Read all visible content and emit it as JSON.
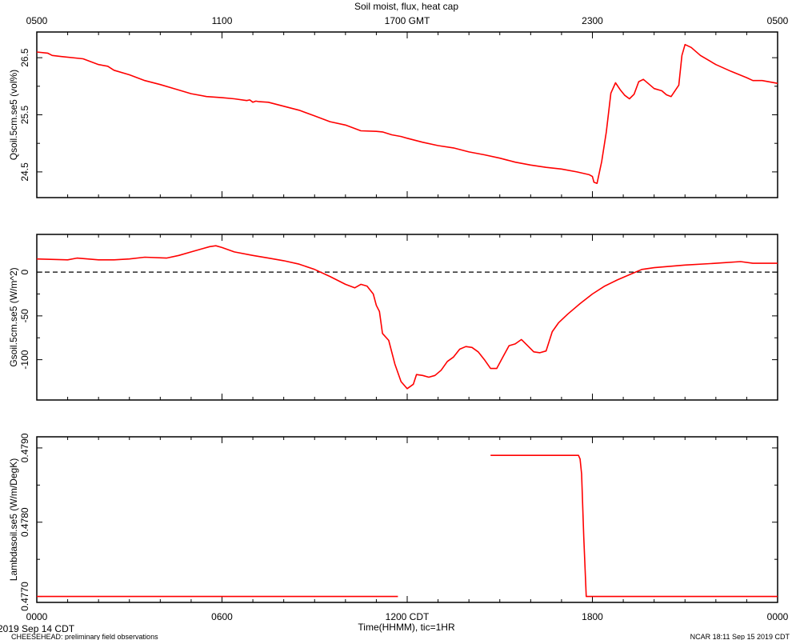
{
  "chart_data": {
    "title": "Soil moist, flux, heat cap",
    "top_axis": {
      "ticks": [
        "0500",
        "1100",
        "1700 GMT",
        "2300",
        "0500"
      ],
      "tick_hours": [
        0,
        6,
        12,
        18,
        24
      ]
    },
    "bottom_axis": {
      "ticks": [
        "0000",
        "0600",
        "1200 CDT",
        "1800",
        "0000"
      ],
      "tick_hours": [
        0,
        6,
        12,
        18,
        24
      ],
      "xlabel": "Time(HHMM), tic=1HR",
      "xlim_hours": [
        0,
        24
      ]
    },
    "footer": {
      "date": "2019 Sep 14 CDT",
      "project": "CHEESEHEAD: preliminary field observations",
      "stamp": "NCAR 18:11 Sep 15 2019 CDT"
    },
    "panels": [
      {
        "type": "line",
        "ylabel": "Qsoil.5cm.se5 (vol%)",
        "ylim": [
          24.05,
          26.95
        ],
        "yticks": [
          24.5,
          25.5,
          26.5
        ],
        "ytick_labels": [
          "24.5",
          "25.5",
          "26.5"
        ],
        "color": "#ff0000",
        "series": [
          {
            "x": [
              0,
              0.35,
              0.5,
              0.8,
              1.5,
              2.0,
              2.3,
              2.5,
              3.0,
              3.5,
              4.0,
              4.5,
              5.0,
              5.5,
              6.0,
              6.4,
              6.8,
              6.9,
              7.0,
              7.1,
              7.2,
              7.5,
              8.0,
              8.5,
              9.0,
              9.5,
              10.0,
              10.5,
              11.0,
              11.2,
              11.5,
              11.8,
              12.0,
              12.5,
              13.0,
              13.5,
              14.0,
              14.5,
              15.0,
              15.5,
              16.0,
              16.5,
              17.0,
              17.5,
              17.9,
              18.0,
              18.05,
              18.15,
              18.3,
              18.45,
              18.6,
              18.75,
              18.9,
              19.05,
              19.2,
              19.35,
              19.5,
              19.65,
              20.0,
              20.25,
              20.4,
              20.55,
              20.8,
              20.9,
              21.0,
              21.2,
              21.5,
              22.0,
              22.5,
              23.0,
              23.2,
              23.5,
              24.0
            ],
            "y": [
              26.6,
              26.58,
              26.54,
              26.52,
              26.48,
              26.38,
              26.35,
              26.28,
              26.2,
              26.1,
              26.03,
              25.95,
              25.87,
              25.82,
              25.8,
              25.78,
              25.75,
              25.76,
              25.72,
              25.74,
              25.73,
              25.72,
              25.65,
              25.58,
              25.48,
              25.38,
              25.32,
              25.22,
              25.21,
              25.2,
              25.15,
              25.12,
              25.09,
              25.02,
              24.96,
              24.92,
              24.85,
              24.8,
              24.74,
              24.67,
              24.62,
              24.58,
              24.55,
              24.5,
              24.45,
              24.42,
              24.32,
              24.3,
              24.68,
              25.2,
              25.88,
              26.06,
              25.94,
              25.84,
              25.78,
              25.86,
              26.08,
              26.12,
              25.96,
              25.92,
              25.85,
              25.82,
              26.02,
              26.54,
              26.73,
              26.68,
              26.54,
              26.38,
              26.26,
              26.15,
              26.1,
              26.1,
              26.05
            ]
          }
        ]
      },
      {
        "type": "line",
        "ylabel": "Gsoil.5cm.se5 (W/m^2)",
        "ylim": [
          -146,
          43
        ],
        "yticks": [
          -100,
          -50,
          0
        ],
        "ytick_labels": [
          "-100",
          "-50",
          "0"
        ],
        "zero_line": true,
        "color": "#ff0000",
        "series": [
          {
            "x": [
              0,
              1.0,
              1.3,
              2.0,
              2.5,
              3.0,
              3.5,
              4.2,
              4.6,
              5.0,
              5.4,
              5.6,
              5.8,
              6.0,
              6.4,
              7.0,
              7.5,
              8.0,
              8.5,
              9.0,
              9.5,
              10.0,
              10.3,
              10.5,
              10.7,
              10.9,
              11.0,
              11.1,
              11.2,
              11.4,
              11.6,
              11.8,
              12.0,
              12.2,
              12.3,
              12.5,
              12.7,
              12.9,
              13.1,
              13.3,
              13.5,
              13.7,
              13.9,
              14.1,
              14.3,
              14.5,
              14.7,
              14.9,
              15.1,
              15.3,
              15.5,
              15.7,
              15.9,
              16.1,
              16.3,
              16.5,
              16.7,
              16.9,
              17.2,
              17.6,
              18.0,
              18.4,
              18.8,
              19.2,
              19.6,
              20.0,
              21.0,
              22.0,
              22.8,
              23.2,
              24.0
            ],
            "y": [
              15,
              14,
              16,
              14,
              14,
              15,
              17,
              16,
              19,
              23,
              27,
              29,
              30,
              28,
              23,
              19,
              16,
              13,
              9,
              3,
              -5,
              -14,
              -18,
              -14,
              -16,
              -25,
              -38,
              -45,
              -70,
              -78,
              -105,
              -125,
              -133,
              -128,
              -117,
              -118,
              -120,
              -118,
              -112,
              -102,
              -97,
              -88,
              -85,
              -86,
              -91,
              -100,
              -110,
              -110,
              -97,
              -84,
              -82,
              -77,
              -84,
              -91,
              -92,
              -90,
              -68,
              -58,
              -48,
              -36,
              -25,
              -16,
              -9,
              -3,
              3,
              5,
              8,
              10,
              12,
              10,
              10
            ]
          }
        ]
      },
      {
        "type": "line",
        "ylabel": "Lambdasoil.se5 (W/m/DegK)",
        "ylim": [
          0.47692,
          0.47915
        ],
        "yticks": [
          0.477,
          0.478,
          0.479
        ],
        "ytick_labels": [
          "0.4770",
          "0.4780",
          "0.4790"
        ],
        "color": "#ff0000",
        "series": [
          {
            "x": [
              0,
              11.7
            ],
            "y": [
              0.477,
              0.477
            ]
          },
          {
            "x": [
              14.7,
              17.55,
              17.6,
              17.65,
              17.72,
              17.8,
              24.0
            ],
            "y": [
              0.4789,
              0.4789,
              0.47885,
              0.47865,
              0.4778,
              0.477,
              0.477
            ]
          }
        ]
      }
    ]
  }
}
